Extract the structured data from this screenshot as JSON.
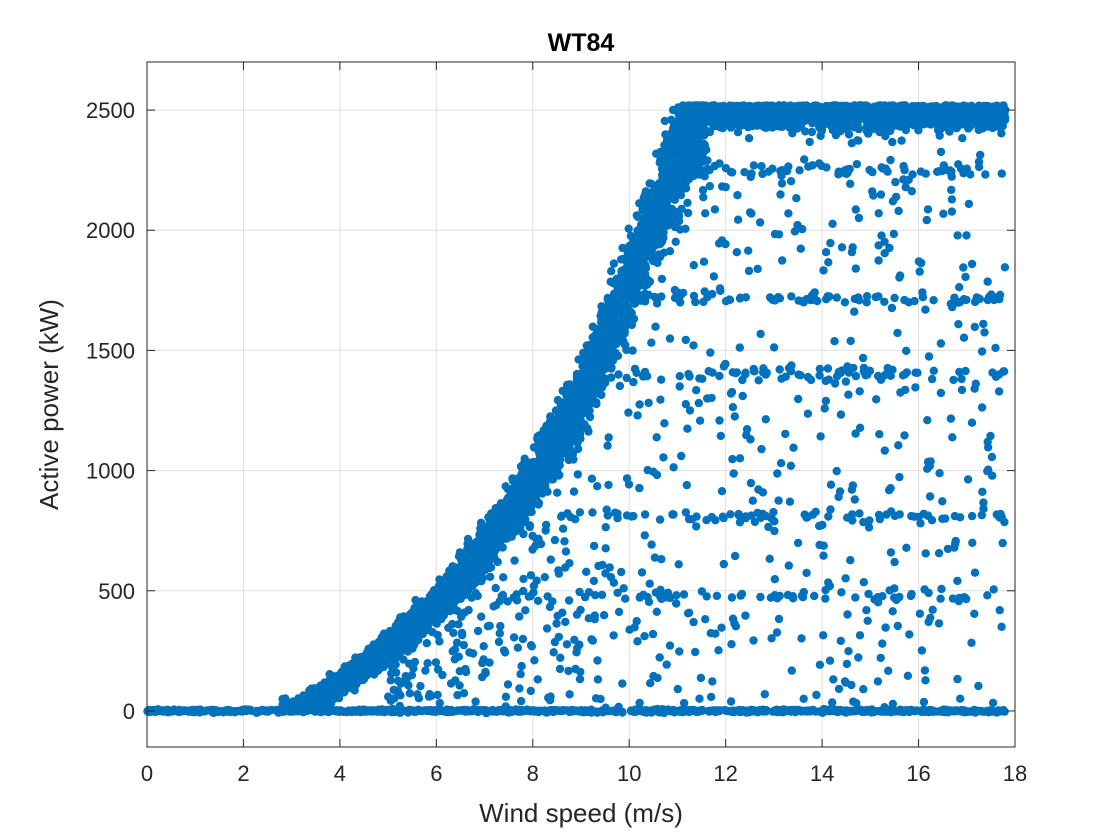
{
  "chart_data": {
    "type": "scatter",
    "title": "WT84",
    "xlabel": "Wind speed (m/s)",
    "ylabel": "Active power (kW)",
    "xlim": [
      0,
      18
    ],
    "ylim": [
      -150,
      2700
    ],
    "xticks": [
      0,
      2,
      4,
      6,
      8,
      10,
      12,
      14,
      16,
      18
    ],
    "yticks": [
      0,
      500,
      1000,
      1500,
      2000,
      2500
    ],
    "grid": true,
    "series": [
      {
        "name": "WT84",
        "color": "#0072BD",
        "marker": "filled-circle",
        "description_points": {
          "rated_power_kw": 2520,
          "cut_in_speed_ms": 3.0,
          "rated_speed_ms": 11.5,
          "max_speed_ms": 17.8,
          "power_curve_x": [
            0,
            3.0,
            4.0,
            5.0,
            6.0,
            7.0,
            8.0,
            9.0,
            10.0,
            11.0,
            11.5,
            17.8
          ],
          "power_curve_y": [
            0,
            0,
            110,
            260,
            440,
            680,
            960,
            1300,
            1780,
            2300,
            2520,
            2520
          ],
          "zero_band_x": [
            0,
            17.8
          ],
          "curtailment_levels_kw": [
            2250,
            1720,
            1400,
            810,
            480,
            0
          ]
        }
      }
    ]
  }
}
